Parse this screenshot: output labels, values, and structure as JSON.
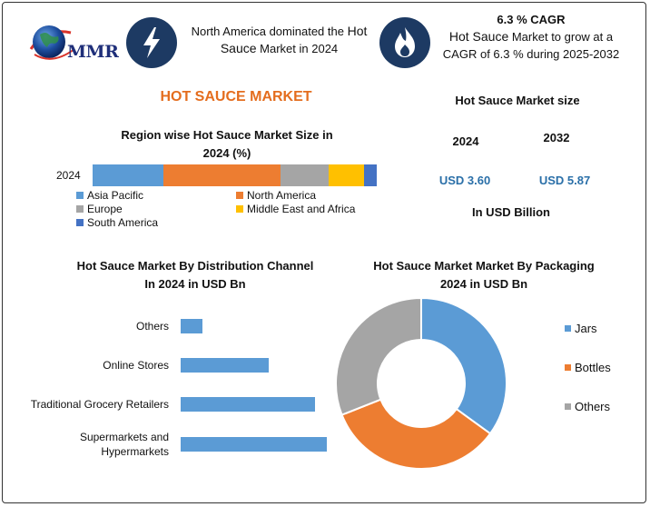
{
  "logo": {
    "text": "MMR"
  },
  "header": {
    "headline_1a": "North America dominated the ",
    "headline_1b": "Hot",
    "headline_1c": "Sauce",
    "headline_1d": " Market in 2024",
    "cagr_title": "6.3 % CAGR",
    "cagr_line_a": "Hot Sauce",
    "cagr_line_b": " Market to grow at a",
    "cagr_line_c": "CAGR of 6.3 % during 2025-2032"
  },
  "market_title": "HOT SAUCE MARKET",
  "market_size": {
    "title": "Hot Sauce Market size",
    "year_1": "2024",
    "year_2": "2032",
    "value_1": "USD 3.60",
    "value_2": "USD 5.87",
    "unit": "In USD Billion"
  },
  "colors": {
    "asia_pacific": "#5b9bd5",
    "north_america": "#ed7d31",
    "europe": "#a5a5a5",
    "mea": "#ffc000",
    "south_america": "#4472c4",
    "logo_blue": "#1f2f7a",
    "icon_circle": "#1d3a63"
  },
  "icons": {
    "left": "lightning-icon",
    "right": "flame-icon",
    "logo": "globe-icon"
  },
  "chart_data": [
    {
      "type": "bar",
      "orientation": "horizontal-stacked",
      "title_line_1": "Region wise Hot Sauce Market Size in",
      "title_line_2": "2024 (%)",
      "categories": [
        "2024"
      ],
      "series": [
        {
          "name": "Asia Pacific",
          "values": [
            25
          ]
        },
        {
          "name": "North America",
          "values": [
            41
          ]
        },
        {
          "name": "Europe",
          "values": [
            17
          ]
        },
        {
          "name": "Middle East and Africa",
          "values": [
            12.5
          ]
        },
        {
          "name": "South America",
          "values": [
            4.5
          ]
        }
      ],
      "xlim": [
        0,
        100
      ],
      "legend": "bottom"
    },
    {
      "type": "bar",
      "orientation": "horizontal",
      "title_line_1": "Hot Sauce Market By Distribution Channel",
      "title_line_2": "In 2024 in USD Bn",
      "categories": [
        "Others",
        "Online Stores",
        "Traditional Grocery Retailers",
        "Supermarkets and Hypermarkets"
      ],
      "category_lines": [
        [
          "Others"
        ],
        [
          "Online Stores"
        ],
        [
          "Traditional Grocery Retailers"
        ],
        [
          "Supermarkets and",
          "Hypermarkets"
        ]
      ],
      "values": [
        0.15,
        0.6,
        0.92,
        1.0
      ],
      "xlim": [
        0,
        1.0
      ],
      "grid": false
    },
    {
      "type": "pie",
      "donut": true,
      "title_line_1": "Hot Sauce Market Market By Packaging",
      "title_line_2": "2024 in USD Bn",
      "labels": [
        "Jars",
        "Bottles",
        "Others"
      ],
      "values": [
        35,
        34,
        31
      ],
      "legend": "right"
    }
  ]
}
